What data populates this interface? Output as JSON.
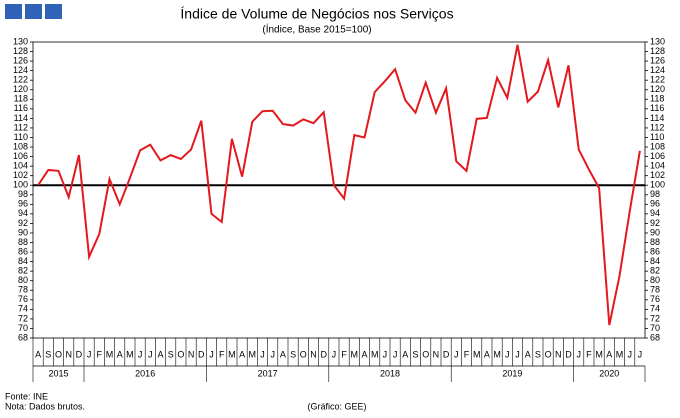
{
  "chart_data": {
    "type": "line",
    "title": "Índice de Volume de Negócios nos Serviços",
    "subtitle": "(Índice, Base 2015=100)",
    "source": "Fonte: INE",
    "note": "Nota: Dados brutos.",
    "credit": "(Gráfico: GEE)",
    "year_groups": [
      {
        "label": "2015",
        "months": [
          "A",
          "S",
          "O",
          "N",
          "D"
        ]
      },
      {
        "label": "2016",
        "months": [
          "J",
          "F",
          "M",
          "A",
          "M",
          "J",
          "J",
          "A",
          "S",
          "O",
          "N",
          "D"
        ]
      },
      {
        "label": "2017",
        "months": [
          "J",
          "F",
          "M",
          "A",
          "M",
          "J",
          "J",
          "A",
          "S",
          "O",
          "N",
          "D"
        ]
      },
      {
        "label": "2018",
        "months": [
          "J",
          "F",
          "M",
          "A",
          "M",
          "J",
          "J",
          "A",
          "S",
          "O",
          "N",
          "D"
        ]
      },
      {
        "label": "2019",
        "months": [
          "J",
          "F",
          "M",
          "A",
          "M",
          "J",
          "J",
          "A",
          "S",
          "O",
          "N",
          "D"
        ]
      },
      {
        "label": "2020",
        "months": [
          "J",
          "F",
          "M",
          "A",
          "M",
          "J",
          "J"
        ]
      }
    ],
    "series": [
      {
        "color": "#e3191e",
        "values": [
          100,
          103.2,
          103,
          97.5,
          106.3,
          85,
          89.8,
          101.3,
          96,
          101.5,
          107.3,
          108.5,
          105.2,
          106.3,
          105.5,
          107.5,
          113.5,
          94,
          92.3,
          109.7,
          101.8,
          113.3,
          115.5,
          115.6,
          112.8,
          112.5,
          113.8,
          113,
          115.3,
          100,
          97.2,
          110.5,
          110,
          119.5,
          121.8,
          124.3,
          117.8,
          115.2,
          121.5,
          115.2,
          120.3,
          105,
          103,
          113.9,
          114.1,
          122.5,
          118.3,
          129.4,
          117.5,
          119.6,
          126.2,
          116.3,
          125.1,
          107.5,
          103.3,
          99.4,
          70.7,
          81,
          94.5,
          107.2
        ]
      }
    ],
    "reference_line": 100,
    "ylim": [
      68,
      130
    ],
    "yticks": [
      68,
      70,
      72,
      74,
      76,
      78,
      80,
      82,
      84,
      86,
      88,
      90,
      92,
      94,
      96,
      98,
      100,
      102,
      104,
      106,
      108,
      110,
      112,
      114,
      116,
      118,
      120,
      122,
      124,
      126,
      128,
      130
    ]
  }
}
